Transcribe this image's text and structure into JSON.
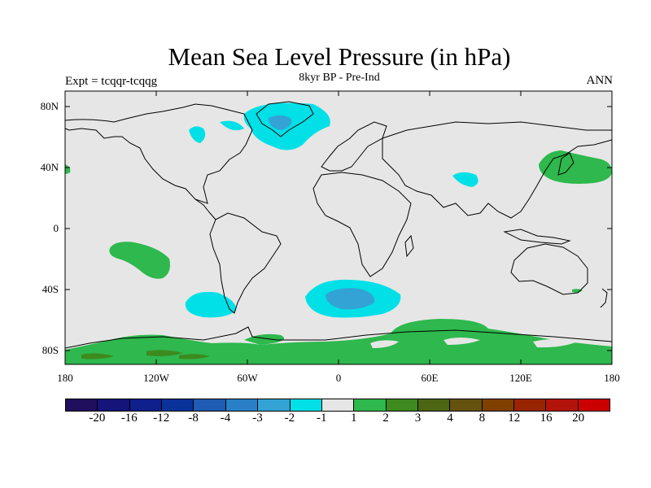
{
  "title": "Mean Sea Level Pressure (in hPa)",
  "subtitle_left": "Expt = tcqqr-tcqqg",
  "subtitle_center": "8kyr BP - Pre-Ind",
  "subtitle_right": "ANN",
  "map": {
    "land_color": "#ffffff",
    "neutral_color": "#e6e6e6",
    "y_labels": [
      "80N",
      "40N",
      "0",
      "40S",
      "80S"
    ],
    "x_labels": [
      "180",
      "120W",
      "60W",
      "0",
      "60E",
      "120E",
      "180"
    ],
    "lon_range": [
      -180,
      180
    ],
    "lat_range": [
      -90,
      90
    ]
  },
  "colorbar": {
    "colors": [
      "#1f0f5c",
      "#14147a",
      "#0f1f8c",
      "#0a3399",
      "#1f5cb3",
      "#2980c7",
      "#33a3d6",
      "#00e0e6",
      "#e6e6e6",
      "#2eb84d",
      "#3d8a1f",
      "#4d6614",
      "#66520f",
      "#804000",
      "#992400",
      "#b3140a",
      "#cc0000"
    ],
    "labels": [
      "-20",
      "-16",
      "-12",
      "-8",
      "-4",
      "-3",
      "-2",
      "-1",
      "1",
      "2",
      "3",
      "4",
      "8",
      "12",
      "16",
      "20"
    ]
  },
  "anomaly_colors": {
    "neg1": "#00e0e6",
    "neg2": "#33a3d6",
    "pos1": "#2eb84d",
    "pos2": "#3d8a1f"
  }
}
